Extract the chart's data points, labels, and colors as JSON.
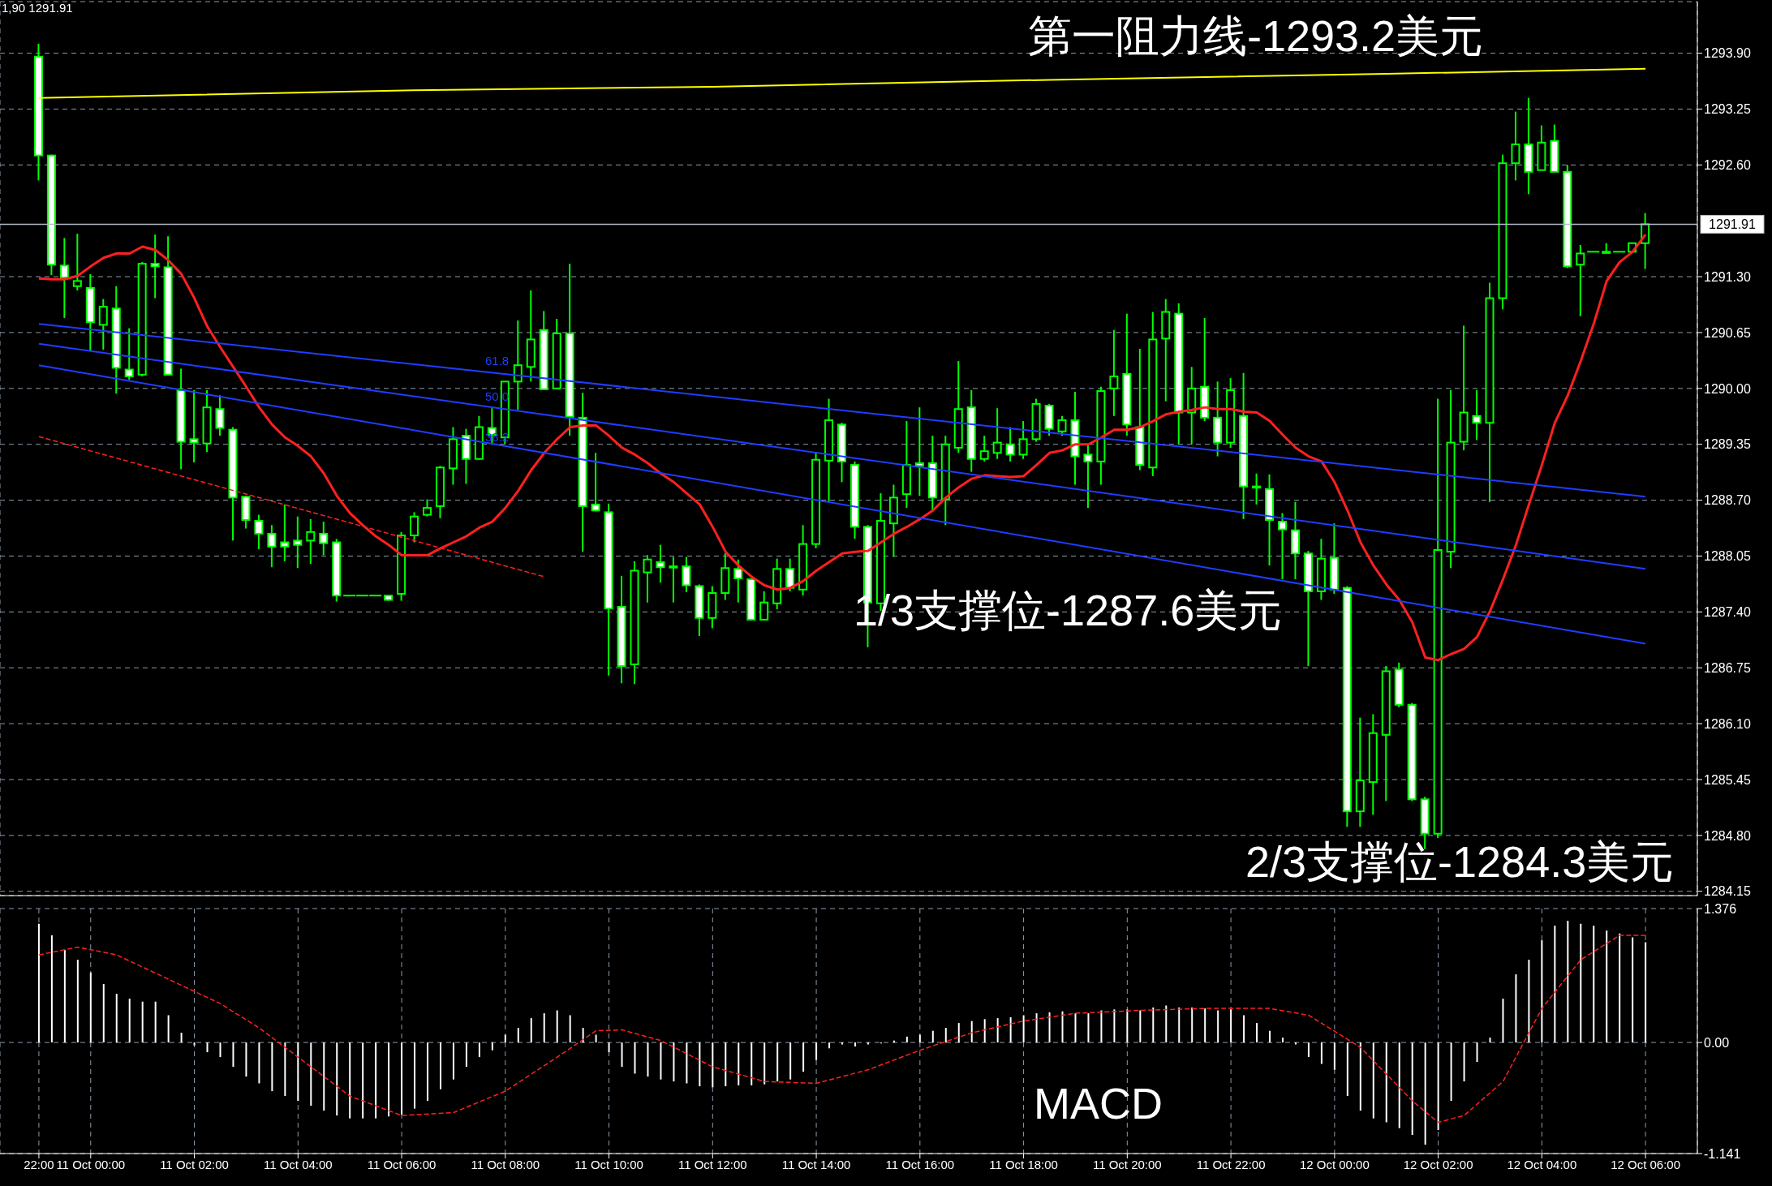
{
  "chart_data": [
    {
      "type": "candlestick",
      "color": "#00ff00",
      "tick_labels": "y",
      "grid": true,
      "categories": [
        null,
        null,
        null,
        null,
        null,
        null,
        null,
        null,
        null,
        null,
        null,
        null,
        null,
        null,
        null,
        null,
        null,
        null,
        null,
        null,
        null,
        null,
        null,
        null,
        null,
        null,
        null,
        null,
        null,
        null,
        null,
        null,
        null,
        null,
        null,
        null,
        null,
        null,
        null,
        null,
        null,
        null,
        null,
        null,
        null,
        null,
        null,
        null,
        null,
        null,
        null,
        null,
        null,
        null,
        null,
        null,
        null,
        null,
        null,
        null,
        null,
        null,
        null,
        null,
        null,
        null,
        null,
        null,
        null,
        null,
        null,
        null,
        null,
        null,
        null,
        null,
        null,
        null,
        null,
        null,
        null,
        null,
        null,
        null,
        null,
        null,
        null,
        null,
        null,
        null,
        null,
        null,
        null,
        null,
        null,
        null,
        null,
        null,
        null,
        null,
        null,
        null,
        null,
        null,
        null,
        null,
        null,
        null,
        null,
        null,
        null,
        null,
        null,
        null,
        null,
        null,
        null,
        null,
        null,
        null,
        null,
        null,
        null,
        null,
        null
      ],
      "ohlc": [
        [
          1293.86,
          1294.01,
          1292.42,
          1292.71
        ],
        [
          1292.71,
          1292.72,
          1291.32,
          1291.44
        ],
        [
          1291.43,
          1291.75,
          1290.82,
          1291.29
        ],
        [
          1291.19,
          1291.8,
          1291.14,
          1291.25
        ],
        [
          1291.17,
          1291.33,
          1290.44,
          1290.77
        ],
        [
          1290.74,
          1291.04,
          1290.45,
          1290.95
        ],
        [
          1290.93,
          1291.19,
          1289.94,
          1290.24
        ],
        [
          1290.22,
          1290.7,
          1290.1,
          1290.14
        ],
        [
          1290.16,
          1291.47,
          1290.14,
          1291.45
        ],
        [
          1291.45,
          1291.79,
          1291.05,
          1291.42
        ],
        [
          1291.41,
          1291.77,
          1290.15,
          1290.16
        ],
        [
          1289.98,
          1290.23,
          1289.06,
          1289.38
        ],
        [
          1289.41,
          1289.98,
          1289.14,
          1289.37
        ],
        [
          1289.36,
          1289.98,
          1289.26,
          1289.78
        ],
        [
          1289.76,
          1289.92,
          1289.45,
          1289.54
        ],
        [
          1289.52,
          1289.55,
          1288.23,
          1288.73
        ],
        [
          1288.74,
          1288.75,
          1288.37,
          1288.47
        ],
        [
          1288.46,
          1288.53,
          1288.13,
          1288.31
        ],
        [
          1288.31,
          1288.41,
          1287.92,
          1288.16
        ],
        [
          1288.21,
          1288.65,
          1287.99,
          1288.16
        ],
        [
          1288.23,
          1288.51,
          1287.91,
          1288.18
        ],
        [
          1288.23,
          1288.48,
          1287.96,
          1288.33
        ],
        [
          1288.31,
          1288.45,
          1288.06,
          1288.2
        ],
        [
          1288.21,
          1288.25,
          1287.52,
          1287.59
        ],
        [
          1287.59,
          1287.59,
          1287.59,
          1287.59
        ],
        [
          1287.59,
          1287.59,
          1287.59,
          1287.59
        ],
        [
          1287.59,
          1287.59,
          1287.59,
          1287.59
        ],
        [
          1287.59,
          1287.59,
          1287.53,
          1287.54
        ],
        [
          1287.61,
          1288.33,
          1287.53,
          1288.29
        ],
        [
          1288.29,
          1288.56,
          1288.21,
          1288.51
        ],
        [
          1288.53,
          1288.71,
          1288.51,
          1288.61
        ],
        [
          1288.63,
          1289.1,
          1288.49,
          1289.08
        ],
        [
          1289.07,
          1289.55,
          1288.88,
          1289.41
        ],
        [
          1289.45,
          1289.53,
          1288.89,
          1289.18
        ],
        [
          1289.18,
          1289.68,
          1289.17,
          1289.55
        ],
        [
          1289.54,
          1289.77,
          1289.35,
          1289.46
        ],
        [
          1289.43,
          1290.08,
          1289.35,
          1290.08
        ],
        [
          1290.08,
          1290.79,
          1289.75,
          1290.27
        ],
        [
          1290.25,
          1291.14,
          1290.08,
          1290.57
        ],
        [
          1290.68,
          1290.9,
          1289.98,
          1289.99
        ],
        [
          1290.0,
          1290.81,
          1289.99,
          1290.64
        ],
        [
          1290.64,
          1291.45,
          1289.45,
          1289.67
        ],
        [
          1289.66,
          1289.95,
          1288.1,
          1288.63
        ],
        [
          1288.65,
          1289.25,
          1288.57,
          1288.58
        ],
        [
          1288.56,
          1288.66,
          1286.66,
          1287.44
        ],
        [
          1287.46,
          1287.82,
          1286.57,
          1286.77
        ],
        [
          1286.79,
          1287.99,
          1286.56,
          1287.88
        ],
        [
          1287.86,
          1288.06,
          1287.51,
          1288.01
        ],
        [
          1287.98,
          1288.18,
          1287.74,
          1287.92
        ],
        [
          1287.92,
          1288.04,
          1287.51,
          1287.93
        ],
        [
          1287.93,
          1288.04,
          1287.63,
          1287.71
        ],
        [
          1287.7,
          1287.72,
          1287.12,
          1287.33
        ],
        [
          1287.33,
          1287.7,
          1287.21,
          1287.62
        ],
        [
          1287.62,
          1288.08,
          1287.54,
          1287.91
        ],
        [
          1287.9,
          1288.01,
          1287.51,
          1287.79
        ],
        [
          1287.78,
          1287.78,
          1287.3,
          1287.31
        ],
        [
          1287.31,
          1287.64,
          1287.3,
          1287.51
        ],
        [
          1287.5,
          1288.02,
          1287.43,
          1287.9
        ],
        [
          1287.9,
          1288.02,
          1287.64,
          1287.68
        ],
        [
          1287.66,
          1288.41,
          1287.59,
          1288.19
        ],
        [
          1288.19,
          1289.25,
          1288.14,
          1289.17
        ],
        [
          1289.16,
          1289.88,
          1288.68,
          1289.63
        ],
        [
          1289.58,
          1289.6,
          1288.91,
          1289.15
        ],
        [
          1289.11,
          1289.15,
          1288.25,
          1288.39
        ],
        [
          1288.39,
          1288.41,
          1286.99,
          1287.51
        ],
        [
          1287.5,
          1288.78,
          1287.41,
          1288.46
        ],
        [
          1288.43,
          1288.88,
          1288.04,
          1288.73
        ],
        [
          1288.77,
          1289.62,
          1288.61,
          1289.11
        ],
        [
          1289.13,
          1289.78,
          1288.75,
          1289.1
        ],
        [
          1289.13,
          1289.45,
          1288.58,
          1288.73
        ],
        [
          1288.71,
          1289.45,
          1288.41,
          1289.35
        ],
        [
          1289.31,
          1290.32,
          1289.25,
          1289.76
        ],
        [
          1289.78,
          1289.98,
          1289.03,
          1289.18
        ],
        [
          1289.18,
          1289.45,
          1289.15,
          1289.27
        ],
        [
          1289.25,
          1289.77,
          1289.18,
          1289.37
        ],
        [
          1289.35,
          1289.55,
          1289.15,
          1289.23
        ],
        [
          1289.23,
          1289.62,
          1289.18,
          1289.41
        ],
        [
          1289.41,
          1289.88,
          1289.38,
          1289.82
        ],
        [
          1289.8,
          1289.82,
          1289.45,
          1289.53
        ],
        [
          1289.5,
          1289.68,
          1289.45,
          1289.63
        ],
        [
          1289.63,
          1289.96,
          1288.88,
          1289.21
        ],
        [
          1289.23,
          1289.35,
          1288.61,
          1289.15
        ],
        [
          1289.15,
          1290.02,
          1288.88,
          1289.97
        ],
        [
          1290.0,
          1290.68,
          1289.68,
          1290.14
        ],
        [
          1290.17,
          1290.87,
          1289.45,
          1289.58
        ],
        [
          1289.55,
          1290.46,
          1289.05,
          1289.11
        ],
        [
          1289.08,
          1290.89,
          1288.98,
          1290.57
        ],
        [
          1290.58,
          1291.04,
          1289.85,
          1290.89
        ],
        [
          1290.87,
          1290.99,
          1289.35,
          1289.72
        ],
        [
          1289.72,
          1290.25,
          1289.35,
          1290.0
        ],
        [
          1290.02,
          1290.82,
          1289.62,
          1289.66
        ],
        [
          1289.66,
          1290.08,
          1289.21,
          1289.37
        ],
        [
          1289.37,
          1290.12,
          1289.31,
          1289.98
        ],
        [
          1289.68,
          1290.18,
          1288.48,
          1288.86
        ],
        [
          1288.86,
          1289.01,
          1288.65,
          1288.85
        ],
        [
          1288.83,
          1289.0,
          1287.94,
          1288.47
        ],
        [
          1288.45,
          1288.55,
          1287.78,
          1288.36
        ],
        [
          1288.35,
          1288.68,
          1287.78,
          1288.08
        ],
        [
          1288.08,
          1288.11,
          1286.77,
          1287.64
        ],
        [
          1287.64,
          1288.25,
          1287.54,
          1288.02
        ],
        [
          1288.03,
          1288.43,
          1287.61,
          1287.66
        ],
        [
          1287.68,
          1287.7,
          1284.9,
          1285.08
        ],
        [
          1285.08,
          1286.17,
          1284.9,
          1285.44
        ],
        [
          1285.42,
          1286.21,
          1285.04,
          1285.99
        ],
        [
          1285.97,
          1286.77,
          1285.2,
          1286.71
        ],
        [
          1286.73,
          1286.81,
          1286.29,
          1286.32
        ],
        [
          1286.32,
          1286.34,
          1285.2,
          1285.22
        ],
        [
          1285.22,
          1285.25,
          1284.64,
          1284.82
        ],
        [
          1284.82,
          1289.88,
          1284.77,
          1288.12
        ],
        [
          1288.1,
          1289.98,
          1287.91,
          1289.37
        ],
        [
          1289.38,
          1290.73,
          1289.28,
          1289.72
        ],
        [
          1289.68,
          1289.98,
          1289.4,
          1289.6
        ],
        [
          1289.6,
          1291.23,
          1288.68,
          1291.05
        ],
        [
          1291.05,
          1292.72,
          1290.92,
          1292.62
        ],
        [
          1292.62,
          1293.22,
          1292.42,
          1292.84
        ],
        [
          1292.84,
          1293.38,
          1292.26,
          1292.52
        ],
        [
          1292.54,
          1293.06,
          1292.54,
          1292.86
        ],
        [
          1292.88,
          1293.07,
          1292.52,
          1292.52
        ],
        [
          1292.52,
          1292.6,
          1291.4,
          1291.42
        ],
        [
          1291.44,
          1291.67,
          1290.84,
          1291.57
        ],
        [
          1291.59,
          1291.59,
          1291.59,
          1291.59
        ],
        [
          1291.59,
          1291.69,
          1291.59,
          1291.59
        ],
        [
          1291.59,
          1291.59,
          1291.59,
          1291.59
        ],
        [
          1291.59,
          1291.69,
          1291.59,
          1291.69
        ],
        [
          1291.69,
          1292.04,
          1291.39,
          1291.91
        ]
      ],
      "series": [
        {
          "type": "line",
          "color": "#ff2020",
          "values": [
            1291.28,
            1291.27,
            1291.27,
            1291.31,
            1291.42,
            1291.52,
            1291.57,
            1291.57,
            1291.65,
            1291.61,
            1291.49,
            1291.33,
            1291.05,
            1290.72,
            1290.48,
            1290.25,
            1290.02,
            1289.78,
            1289.58,
            1289.43,
            1289.33,
            1289.21,
            1289.01,
            1288.75,
            1288.55,
            1288.41,
            1288.28,
            1288.18,
            1288.06,
            1288.06,
            1288.06,
            1288.14,
            1288.21,
            1288.28,
            1288.38,
            1288.45,
            1288.61,
            1288.81,
            1289.05,
            1289.25,
            1289.41,
            1289.55,
            1289.57,
            1289.57,
            1289.45,
            1289.31,
            1289.23,
            1289.13,
            1289.01,
            1288.91,
            1288.78,
            1288.65,
            1288.39,
            1288.1,
            1287.94,
            1287.81,
            1287.71,
            1287.66,
            1287.68,
            1287.76,
            1287.88,
            1287.98,
            1288.08,
            1288.1,
            1288.11,
            1288.21,
            1288.31,
            1288.39,
            1288.48,
            1288.58,
            1288.73,
            1288.85,
            1288.95,
            1288.99,
            1288.98,
            1288.97,
            1288.98,
            1289.11,
            1289.25,
            1289.28,
            1289.35,
            1289.35,
            1289.43,
            1289.52,
            1289.52,
            1289.55,
            1289.62,
            1289.7,
            1289.73,
            1289.75,
            1289.78,
            1289.76,
            1289.76,
            1289.73,
            1289.72,
            1289.62,
            1289.46,
            1289.31,
            1289.21,
            1289.15,
            1288.91,
            1288.58,
            1288.21,
            1287.94,
            1287.72,
            1287.54,
            1287.28,
            1286.87,
            1286.84,
            1286.91,
            1286.97,
            1287.11,
            1287.41,
            1287.78,
            1288.18,
            1288.65,
            1289.11,
            1289.6,
            1289.92,
            1290.32,
            1290.75,
            1291.25,
            1291.47,
            1291.59,
            1291.79
          ]
        },
        {
          "type": "line",
          "color": "#ffff00",
          "values": [
            1293.38,
            null,
            null,
            null,
            null,
            null,
            null,
            null,
            null,
            null,
            null,
            null,
            null,
            null,
            null,
            null,
            null,
            null,
            null,
            null,
            null,
            null,
            null,
            null,
            null,
            null,
            null,
            null,
            null,
            1293.47,
            null,
            null,
            null,
            null,
            null,
            null,
            null,
            null,
            null,
            null,
            null,
            null,
            null,
            null,
            null,
            null,
            null,
            null,
            null,
            null,
            null,
            null,
            1293.51,
            null,
            null,
            null,
            null,
            null,
            null,
            null,
            null,
            null,
            null,
            null,
            null,
            null,
            null,
            null,
            null,
            null,
            null,
            null,
            null,
            null,
            null,
            null,
            null,
            null,
            1293.59,
            null,
            null,
            null,
            null,
            null,
            null,
            null,
            null,
            null,
            null,
            null,
            null,
            null,
            null,
            null,
            null,
            null,
            null,
            null,
            null,
            null,
            null,
            null,
            null,
            null,
            1293.66,
            null,
            null,
            null,
            null,
            null,
            null,
            null,
            null,
            null,
            null,
            null,
            null,
            null,
            null,
            null,
            null,
            null,
            null,
            null,
            1293.72
          ]
        },
        {
          "type": "line",
          "color": "#1f3dff",
          "values": [
            1290.75,
            null,
            null,
            null,
            null,
            null,
            null,
            null,
            null,
            null,
            null,
            null,
            null,
            null,
            null,
            null,
            null,
            null,
            null,
            null,
            null,
            null,
            null,
            null,
            null,
            null,
            null,
            null,
            null,
            null,
            null,
            null,
            null,
            null,
            null,
            null,
            null,
            null,
            null,
            null,
            null,
            null,
            null,
            null,
            null,
            null,
            null,
            null,
            null,
            null,
            null,
            null,
            null,
            null,
            null,
            null,
            null,
            null,
            null,
            null,
            null,
            null,
            null,
            null,
            null,
            null,
            null,
            null,
            null,
            null,
            null,
            null,
            null,
            null,
            null,
            null,
            null,
            null,
            null,
            null,
            null,
            null,
            null,
            null,
            null,
            null,
            null,
            null,
            null,
            null,
            null,
            null,
            null,
            null,
            null,
            null,
            null,
            null,
            null,
            null,
            null,
            null,
            null,
            null,
            null,
            null,
            null,
            null,
            null,
            null,
            null,
            null,
            null,
            null,
            null,
            null,
            null,
            null,
            null,
            null,
            null,
            null,
            null,
            null,
            1288.74
          ]
        },
        {
          "type": "line",
          "color": "#1f3dff",
          "values": [
            1290.52,
            null,
            null,
            null,
            null,
            null,
            null,
            null,
            null,
            null,
            null,
            null,
            null,
            null,
            null,
            null,
            null,
            null,
            null,
            null,
            null,
            null,
            null,
            null,
            null,
            null,
            null,
            null,
            null,
            null,
            null,
            null,
            null,
            null,
            null,
            null,
            null,
            null,
            null,
            null,
            null,
            null,
            null,
            null,
            null,
            null,
            null,
            null,
            null,
            null,
            null,
            null,
            null,
            null,
            null,
            null,
            null,
            null,
            null,
            null,
            null,
            null,
            null,
            null,
            null,
            null,
            null,
            null,
            null,
            null,
            null,
            null,
            null,
            null,
            null,
            null,
            null,
            null,
            null,
            null,
            null,
            null,
            null,
            null,
            null,
            null,
            null,
            null,
            null,
            null,
            null,
            null,
            null,
            null,
            null,
            null,
            null,
            null,
            null,
            null,
            null,
            null,
            null,
            null,
            null,
            null,
            null,
            null,
            null,
            null,
            null,
            null,
            null,
            null,
            null,
            null,
            null,
            null,
            null,
            null,
            null,
            null,
            null,
            null,
            1287.9
          ]
        },
        {
          "type": "line",
          "color": "#1f3dff",
          "values": [
            1290.27,
            null,
            null,
            null,
            null,
            null,
            null,
            null,
            null,
            null,
            null,
            null,
            null,
            null,
            null,
            null,
            null,
            null,
            null,
            null,
            null,
            null,
            null,
            null,
            null,
            null,
            null,
            null,
            null,
            null,
            null,
            null,
            null,
            null,
            null,
            null,
            null,
            null,
            null,
            null,
            null,
            null,
            null,
            null,
            null,
            null,
            null,
            null,
            null,
            null,
            null,
            null,
            null,
            null,
            null,
            null,
            null,
            null,
            null,
            null,
            null,
            null,
            null,
            null,
            null,
            null,
            null,
            null,
            null,
            null,
            null,
            null,
            null,
            null,
            null,
            null,
            null,
            null,
            null,
            null,
            null,
            null,
            null,
            null,
            null,
            null,
            null,
            null,
            null,
            null,
            null,
            null,
            null,
            null,
            null,
            null,
            null,
            null,
            null,
            null,
            null,
            null,
            null,
            null,
            null,
            null,
            null,
            null,
            null,
            null,
            null,
            null,
            null,
            null,
            null,
            null,
            null,
            null,
            null,
            null,
            null,
            null,
            null,
            null,
            1287.03
          ]
        },
        {
          "type": "line",
          "color": "#ff2020",
          "line_style": "dashed",
          "values": [
            1289.44,
            null,
            null,
            null,
            null,
            null,
            null,
            null,
            null,
            null,
            null,
            null,
            null,
            null,
            null,
            null,
            null,
            null,
            null,
            null,
            null,
            null,
            null,
            null,
            null,
            null,
            null,
            null,
            null,
            null,
            null,
            null,
            null,
            null,
            null,
            null,
            null,
            null,
            null,
            1287.81,
            null,
            null,
            null,
            null,
            null,
            null,
            null,
            null,
            null,
            null,
            null,
            null,
            null,
            null,
            null,
            null,
            null,
            null,
            null,
            null,
            null,
            null,
            null,
            null,
            null,
            null,
            null,
            null,
            null,
            null,
            null,
            null,
            null,
            null,
            null,
            null,
            null,
            null,
            null,
            null,
            null,
            null,
            null,
            null,
            null,
            null,
            null,
            null,
            null,
            null,
            null,
            null,
            null,
            null,
            null,
            null,
            null,
            null,
            null,
            null,
            null,
            null,
            null,
            null,
            null,
            null,
            null,
            null,
            null,
            null,
            null,
            null,
            null,
            null,
            null,
            null,
            null,
            null,
            null,
            null,
            null,
            null,
            null,
            null,
            null
          ]
        }
      ],
      "ylim": [
        1284.1,
        1294.5
      ],
      "yticks": [
        {
          "value": 1293.9,
          "label": "1293.90"
        },
        1293.25,
        {
          "value": 1292.6,
          "label": "1292.60"
        },
        {
          "value": 1291.3,
          "label": "1291.30"
        },
        1290.65,
        {
          "value": 1290,
          "label": "1290.00"
        },
        1289.35,
        {
          "value": 1288.7,
          "label": "1288.70"
        },
        1288.05,
        {
          "value": 1287.4,
          "label": "1287.40"
        },
        1286.75,
        {
          "value": 1286.1,
          "label": "1286.10"
        },
        1285.45,
        {
          "value": 1284.8,
          "label": "1284.80"
        },
        1284.15
      ],
      "ref_lines": [
        {
          "axis": "y",
          "value": 1291.91,
          "label": "1291.91",
          "color": "#b4bcc8"
        }
      ],
      "annotations": [
        "1,90 1291.91",
        "第一阻力线-1293.2美元",
        "1/3支撑位-1287.6美元",
        "2/3支撑位-1284.3美元",
        "61.8",
        "50.0",
        "38.2"
      ]
    },
    {
      "type": "bar",
      "grid": true,
      "categories": [
        "22:00",
        null,
        null,
        null,
        "11 Oct 00:00",
        null,
        null,
        null,
        null,
        null,
        null,
        null,
        "11 Oct 02:00",
        null,
        null,
        null,
        null,
        null,
        null,
        null,
        "11 Oct 04:00",
        null,
        null,
        null,
        null,
        null,
        null,
        null,
        "11 Oct 06:00",
        null,
        null,
        null,
        null,
        null,
        null,
        null,
        "11 Oct 08:00",
        null,
        null,
        null,
        null,
        null,
        null,
        null,
        "11 Oct 10:00",
        null,
        null,
        null,
        null,
        null,
        null,
        null,
        "11 Oct 12:00",
        null,
        null,
        null,
        null,
        null,
        null,
        null,
        "11 Oct 14:00",
        null,
        null,
        null,
        null,
        null,
        null,
        null,
        "11 Oct 16:00",
        null,
        null,
        null,
        null,
        null,
        null,
        null,
        "11 Oct 18:00",
        null,
        null,
        null,
        null,
        null,
        null,
        null,
        "11 Oct 20:00",
        null,
        null,
        null,
        null,
        null,
        null,
        null,
        "11 Oct 22:00",
        null,
        null,
        null,
        null,
        null,
        null,
        null,
        "12 Oct 00:00",
        null,
        null,
        null,
        null,
        null,
        null,
        null,
        "12 Oct 02:00",
        null,
        null,
        null,
        null,
        null,
        null,
        null,
        "12 Oct 04:00",
        null,
        null,
        null,
        null,
        null,
        null,
        null,
        "12 Oct 06:00"
      ],
      "series": [
        {
          "type": "bar",
          "color": "#ffffff",
          "values": [
            1.22,
            1.1,
            0.95,
            0.85,
            0.72,
            0.6,
            0.5,
            0.45,
            0.42,
            0.42,
            0.28,
            0.1,
            -0.03,
            -0.1,
            -0.15,
            -0.25,
            -0.35,
            -0.42,
            -0.5,
            -0.55,
            -0.6,
            -0.65,
            -0.7,
            -0.75,
            -0.78,
            -0.78,
            -0.78,
            -0.76,
            -0.74,
            -0.68,
            -0.6,
            -0.48,
            -0.38,
            -0.25,
            -0.15,
            -0.08,
            0.08,
            0.15,
            0.25,
            0.3,
            0.33,
            0.28,
            0.15,
            0.08,
            -0.1,
            -0.25,
            -0.32,
            -0.35,
            -0.38,
            -0.4,
            -0.42,
            -0.45,
            -0.46,
            -0.45,
            -0.44,
            -0.44,
            -0.43,
            -0.4,
            -0.38,
            -0.3,
            -0.18,
            -0.06,
            -0.02,
            -0.04,
            -0.02,
            -0.01,
            0.02,
            0.06,
            0.08,
            0.12,
            0.15,
            0.2,
            0.22,
            0.24,
            0.25,
            0.26,
            0.28,
            0.3,
            0.31,
            0.32,
            0.3,
            0.3,
            0.33,
            0.34,
            0.34,
            0.33,
            0.36,
            0.38,
            0.36,
            0.36,
            0.35,
            0.33,
            0.34,
            0.28,
            0.2,
            0.12,
            0.05,
            -0.02,
            -0.15,
            -0.22,
            -0.28,
            -0.55,
            -0.7,
            -0.78,
            -0.82,
            -0.88,
            -0.95,
            -1.05,
            -0.9,
            -0.6,
            -0.4,
            -0.2,
            0.05,
            0.45,
            0.7,
            0.85,
            1.05,
            1.2,
            1.25,
            1.22,
            1.2,
            1.15,
            1.12,
            1.08,
            1.03
          ]
        },
        {
          "type": "line",
          "color": "#ff2020",
          "line_style": "dashed",
          "values": [
            0.9,
            null,
            null,
            0.98,
            null,
            null,
            0.9,
            null,
            null,
            null,
            0.65,
            null,
            null,
            null,
            0.4,
            null,
            null,
            0.15,
            null,
            null,
            -0.15,
            null,
            null,
            null,
            -0.55,
            null,
            null,
            null,
            -0.75,
            null,
            null,
            null,
            -0.72,
            null,
            null,
            null,
            -0.5,
            null,
            null,
            null,
            -0.15,
            null,
            null,
            0.12,
            null,
            0.13,
            null,
            null,
            0.02,
            null,
            null,
            null,
            -0.25,
            null,
            null,
            null,
            -0.4,
            null,
            null,
            null,
            -0.42,
            null,
            null,
            null,
            -0.28,
            null,
            null,
            null,
            -0.08,
            null,
            null,
            null,
            0.1,
            null,
            null,
            null,
            0.22,
            null,
            null,
            null,
            0.3,
            null,
            null,
            null,
            null,
            0.33,
            null,
            null,
            null,
            null,
            0.35,
            null,
            null,
            null,
            null,
            0.35,
            null,
            null,
            0.28,
            null,
            null,
            null,
            -0.05,
            null,
            null,
            null,
            -0.6,
            null,
            -0.82,
            null,
            -0.75,
            null,
            null,
            -0.4,
            null,
            null,
            0.35,
            null,
            null,
            0.85,
            null,
            null,
            1.1,
            null,
            1.1
          ]
        }
      ],
      "ylim": [
        -1.141,
        1.376
      ],
      "yticks": [
        1.376,
        {
          "value": 0,
          "label": "0.00"
        },
        -1.141
      ],
      "annotations": [
        "MACD"
      ]
    }
  ]
}
